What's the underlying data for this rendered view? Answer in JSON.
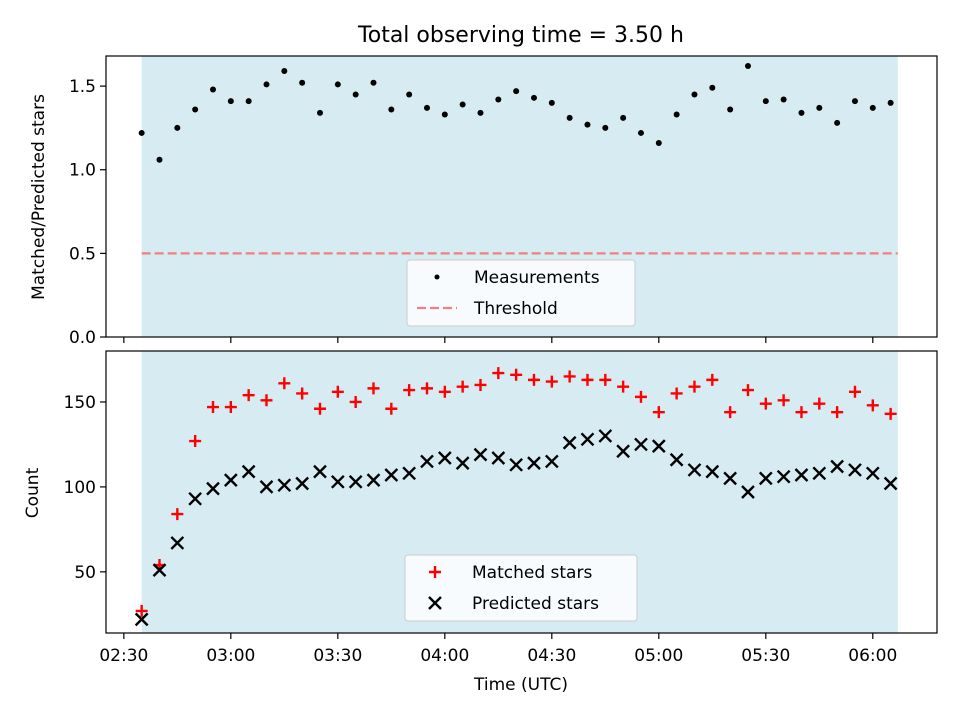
{
  "title": "Total observing time = 3.50 h",
  "colors": {
    "span_fill": "#add8e6",
    "measurement": "#000000",
    "threshold": "#f08080",
    "matched": "#ff0000",
    "predicted": "#000000"
  },
  "chart_data": [
    {
      "type": "scatter",
      "ylabel": "Matched/Predicted stars",
      "xlabel": "",
      "ylim": [
        0,
        1.68
      ],
      "yticks": [
        0.0,
        0.5,
        1.0,
        1.5
      ],
      "ytick_labels": [
        "0.0",
        "0.5",
        "1.0",
        "1.5"
      ],
      "xlim": [
        "02:25",
        "06:18"
      ],
      "xticks": [
        "02:30",
        "03:00",
        "03:30",
        "04:00",
        "04:30",
        "05:00",
        "05:30",
        "06:00"
      ],
      "shaded_span": [
        "02:35",
        "06:07"
      ],
      "threshold": 0.5,
      "legend": {
        "placement": "lower-center",
        "entries": [
          "Measurements",
          "Threshold"
        ]
      },
      "series": [
        {
          "name": "Measurements",
          "x": [
            "02:35",
            "02:40",
            "02:45",
            "02:50",
            "02:55",
            "03:00",
            "03:05",
            "03:10",
            "03:15",
            "03:20",
            "03:25",
            "03:30",
            "03:35",
            "03:40",
            "03:45",
            "03:50",
            "03:55",
            "04:00",
            "04:05",
            "04:10",
            "04:15",
            "04:20",
            "04:25",
            "04:30",
            "04:35",
            "04:40",
            "04:45",
            "04:50",
            "04:55",
            "05:00",
            "05:05",
            "05:10",
            "05:15",
            "05:20",
            "05:25",
            "05:30",
            "05:35",
            "05:40",
            "05:45",
            "05:50",
            "05:55",
            "06:00",
            "06:05"
          ],
          "y": [
            1.22,
            1.06,
            1.25,
            1.36,
            1.48,
            1.41,
            1.41,
            1.51,
            1.59,
            1.52,
            1.34,
            1.51,
            1.45,
            1.52,
            1.36,
            1.45,
            1.37,
            1.33,
            1.39,
            1.34,
            1.42,
            1.47,
            1.43,
            1.4,
            1.31,
            1.27,
            1.25,
            1.31,
            1.22,
            1.16,
            1.33,
            1.45,
            1.49,
            1.36,
            1.62,
            1.41,
            1.42,
            1.34,
            1.37,
            1.28,
            1.41,
            1.37,
            1.4
          ]
        }
      ]
    },
    {
      "type": "scatter",
      "ylabel": "Count",
      "xlabel": "Time (UTC)",
      "ylim": [
        14,
        180
      ],
      "yticks": [
        50,
        100,
        150
      ],
      "ytick_labels": [
        "50",
        "100",
        "150"
      ],
      "xlim": [
        "02:25",
        "06:18"
      ],
      "xticks": [
        "02:30",
        "03:00",
        "03:30",
        "04:00",
        "04:30",
        "05:00",
        "05:30",
        "06:00"
      ],
      "xtick_labels": [
        "02:30",
        "03:00",
        "03:30",
        "04:00",
        "04:30",
        "05:00",
        "05:30",
        "06:00"
      ],
      "shaded_span": [
        "02:35",
        "06:07"
      ],
      "legend": {
        "placement": "lower-center",
        "entries": [
          "Matched stars",
          "Predicted stars"
        ]
      },
      "x": [
        "02:35",
        "02:40",
        "02:45",
        "02:50",
        "02:55",
        "03:00",
        "03:05",
        "03:10",
        "03:15",
        "03:20",
        "03:25",
        "03:30",
        "03:35",
        "03:40",
        "03:45",
        "03:50",
        "03:55",
        "04:00",
        "04:05",
        "04:10",
        "04:15",
        "04:20",
        "04:25",
        "04:30",
        "04:35",
        "04:40",
        "04:45",
        "04:50",
        "04:55",
        "05:00",
        "05:05",
        "05:10",
        "05:15",
        "05:20",
        "05:25",
        "05:30",
        "05:35",
        "05:40",
        "05:45",
        "05:50",
        "05:55",
        "06:00",
        "06:05"
      ],
      "series": [
        {
          "name": "Matched stars",
          "marker": "plus",
          "values": [
            27,
            54,
            84,
            127,
            147,
            147,
            154,
            151,
            161,
            155,
            146,
            156,
            150,
            158,
            146,
            157,
            158,
            156,
            159,
            160,
            167,
            166,
            163,
            162,
            165,
            163,
            163,
            159,
            153,
            144,
            155,
            159,
            163,
            144,
            157,
            149,
            151,
            144,
            149,
            144,
            156,
            148,
            143
          ]
        },
        {
          "name": "Predicted stars",
          "marker": "x",
          "values": [
            22,
            51,
            67,
            93,
            99,
            104,
            109,
            100,
            101,
            102,
            109,
            103,
            103,
            104,
            107,
            108,
            115,
            117,
            114,
            119,
            117,
            113,
            114,
            115,
            126,
            128,
            130,
            121,
            125,
            124,
            116,
            110,
            109,
            105,
            97,
            105,
            106,
            107,
            108,
            112,
            110,
            108,
            102
          ]
        }
      ]
    }
  ]
}
